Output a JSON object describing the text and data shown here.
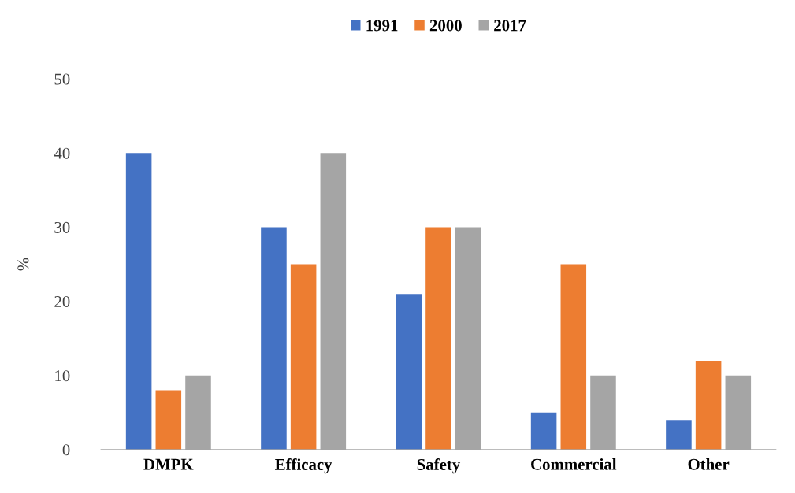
{
  "chart_data": {
    "type": "bar",
    "ylabel": "%",
    "categories": [
      "DMPK",
      "Efficacy",
      "Safety",
      "Commercial",
      "Other"
    ],
    "series": [
      {
        "name": "1991",
        "color": "#4472c4",
        "values": [
          40,
          30,
          21,
          5,
          4
        ]
      },
      {
        "name": "2000",
        "color": "#ed7d31",
        "values": [
          8,
          25,
          30,
          25,
          12
        ]
      },
      {
        "name": "2017",
        "color": "#a5a5a5",
        "values": [
          10,
          40,
          30,
          10,
          10
        ]
      }
    ],
    "ylim": [
      0,
      50
    ],
    "yticks": [
      0,
      10,
      20,
      30,
      40,
      50
    ],
    "grid": false,
    "legend": "top"
  }
}
